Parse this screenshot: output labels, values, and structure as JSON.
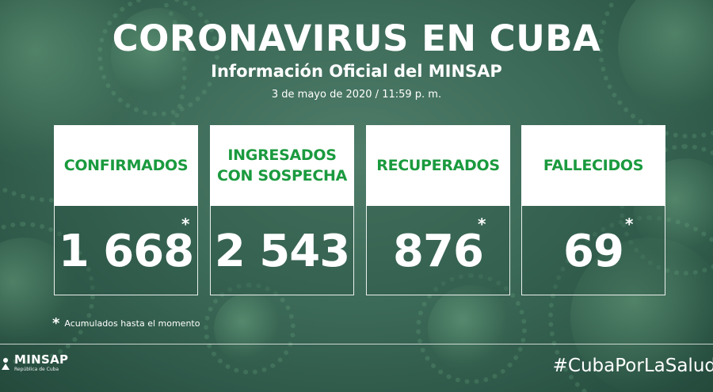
{
  "header": {
    "title": "CORONAVIRUS EN CUBA",
    "subtitle": "Información Oficial del MINSAP",
    "date": "3 de mayo de 2020 / 11:59 p. m."
  },
  "cards": [
    {
      "label": "CONFIRMADOS",
      "value": "1 668",
      "asterisk": "*"
    },
    {
      "label_line1": "INGRESADOS",
      "label_line2": "CON SOSPECHA",
      "value": "2 543"
    },
    {
      "label": "RECUPERADOS",
      "value": "876",
      "asterisk": "*"
    },
    {
      "label": "FALLECIDOS",
      "value": "69",
      "asterisk": "*"
    }
  ],
  "footnote": {
    "star": "*",
    "text": "Acumulados hasta el momento"
  },
  "logo": {
    "name": "MINSAP",
    "subtitle": "República de Cuba"
  },
  "hashtag": "#CubaPorLaSalud",
  "colors": {
    "accent_green": "#1a9a3e",
    "background": "#3c6a58",
    "text": "#ffffff"
  }
}
